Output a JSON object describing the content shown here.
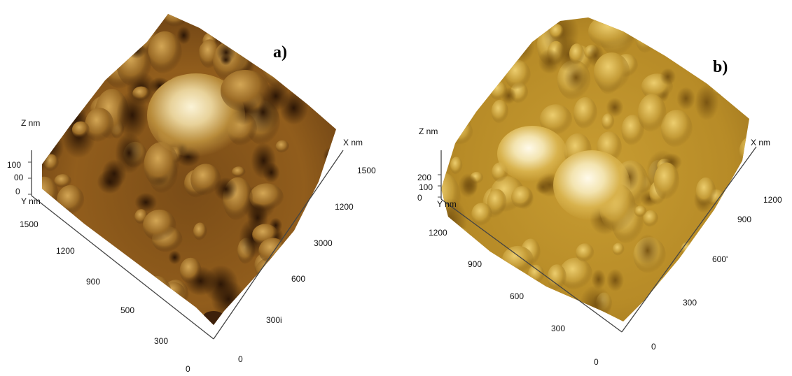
{
  "panels": [
    {
      "label": "a)",
      "z_axis": {
        "title": "Z nm",
        "ticks": [
          "100",
          "00",
          "0"
        ]
      },
      "x_axis": {
        "title": "X nm",
        "ticks": [
          "1500",
          "1200",
          "3000",
          "600",
          "300i",
          "0"
        ]
      },
      "y_axis": {
        "title": "Y nm",
        "ticks": [
          "1500",
          "1200",
          "900",
          "500",
          "300",
          "0"
        ]
      },
      "colors": {
        "dark": "#3d200b",
        "mid": "#a0701f",
        "light": "#f3e6b8"
      }
    },
    {
      "label": "b)",
      "z_axis": {
        "title": "Z nm",
        "ticks": [
          "200",
          "100",
          "0"
        ]
      },
      "x_axis": {
        "title": "X nm",
        "ticks": [
          "1200",
          "900",
          "600'",
          "300",
          "0"
        ]
      },
      "y_axis": {
        "title": "Y nm",
        "ticks": [
          "1200",
          "900",
          "600",
          "300",
          "0"
        ]
      },
      "colors": {
        "dark": "#6e4c10",
        "mid": "#c49b30",
        "light": "#f7efcf"
      }
    }
  ]
}
